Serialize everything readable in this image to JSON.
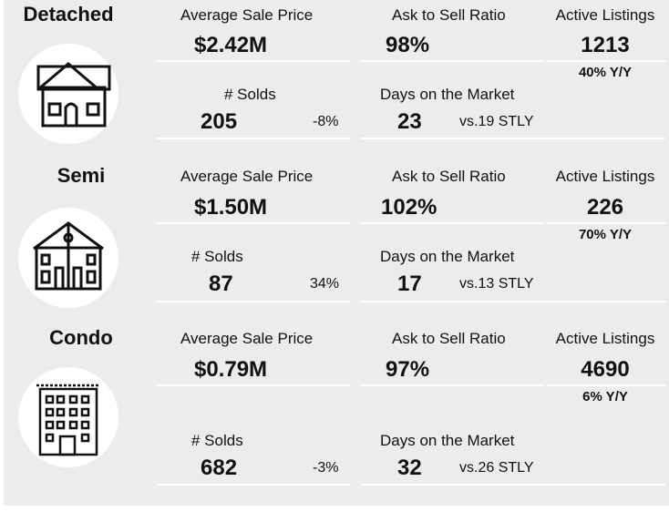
{
  "colors": {
    "panel_bg": "#ececec",
    "circle_bg": "#ffffff",
    "text": "#111111"
  },
  "sections": [
    {
      "title": "Detached",
      "icon": "detached-house-icon",
      "avg_price_label": "Average Sale Price",
      "avg_price": "$2.42M",
      "ask_label": "Ask to Sell Ratio",
      "ask": "98%",
      "listings_label": "Active Listings",
      "listings": "1213",
      "listings_yy": "40% Y/Y",
      "solds_label": "# Solds",
      "solds": "205",
      "solds_change": "-8%",
      "dom_label": "Days on the Market",
      "dom": "23",
      "dom_vs": "vs.19 STLY"
    },
    {
      "title": "Semi",
      "icon": "semi-detached-house-icon",
      "avg_price_label": "Average Sale Price",
      "avg_price": "$1.50M",
      "ask_label": "Ask to Sell Ratio",
      "ask": "102%",
      "listings_label": "Active Listings",
      "listings": "226",
      "listings_yy": "70% Y/Y",
      "solds_label": "# Solds",
      "solds": "87",
      "solds_change": "34%",
      "dom_label": "Days on the Market",
      "dom": "17",
      "dom_vs": "vs.13 STLY"
    },
    {
      "title": "Condo",
      "icon": "condo-building-icon",
      "avg_price_label": "Average Sale Price",
      "avg_price": "$0.79M",
      "ask_label": "Ask to Sell Ratio",
      "ask": "97%",
      "listings_label": "Active Listings",
      "listings": "4690",
      "listings_yy": "6% Y/Y",
      "solds_label": "# Solds",
      "solds": "682",
      "solds_change": "-3%",
      "dom_label": "Days on the Market",
      "dom": "32",
      "dom_vs": "vs.26 STLY"
    }
  ]
}
